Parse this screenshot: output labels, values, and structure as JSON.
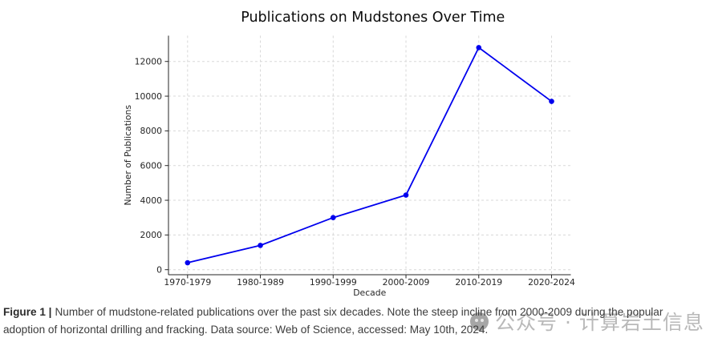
{
  "chart_data": {
    "type": "line",
    "title": "Publications on Mudstones Over Time",
    "categories": [
      "1970-1979",
      "1980-1989",
      "1990-1999",
      "2000-2009",
      "2010-2019",
      "2020-2024"
    ],
    "values": [
      400,
      1400,
      3000,
      4300,
      12800,
      9700
    ],
    "xlabel": "Decade",
    "ylabel": "Number of Publications",
    "yticks": [
      0,
      2000,
      4000,
      6000,
      8000,
      10000,
      12000
    ],
    "ylim": [
      0,
      13500
    ],
    "grid": true,
    "grid_style": "dashed",
    "legend": false,
    "line_color": "#0000EE",
    "marker": "circle",
    "tick_color": "#262626",
    "grid_color": "#d8d8d8",
    "spine_color": "#262626"
  },
  "caption": {
    "label": "Figure 1 |",
    "line1": "Number of mudstone-related publications over the past six decades. Note the steep incline from 2000-2009 during the popular",
    "line2": "adoption of horizontal drilling and fracking. Data source: Web of Science, accessed: May 10th, 2024."
  },
  "watermark": {
    "icon": "public-account-logo-icon",
    "text": "公众号 · 计算岩土信息"
  }
}
